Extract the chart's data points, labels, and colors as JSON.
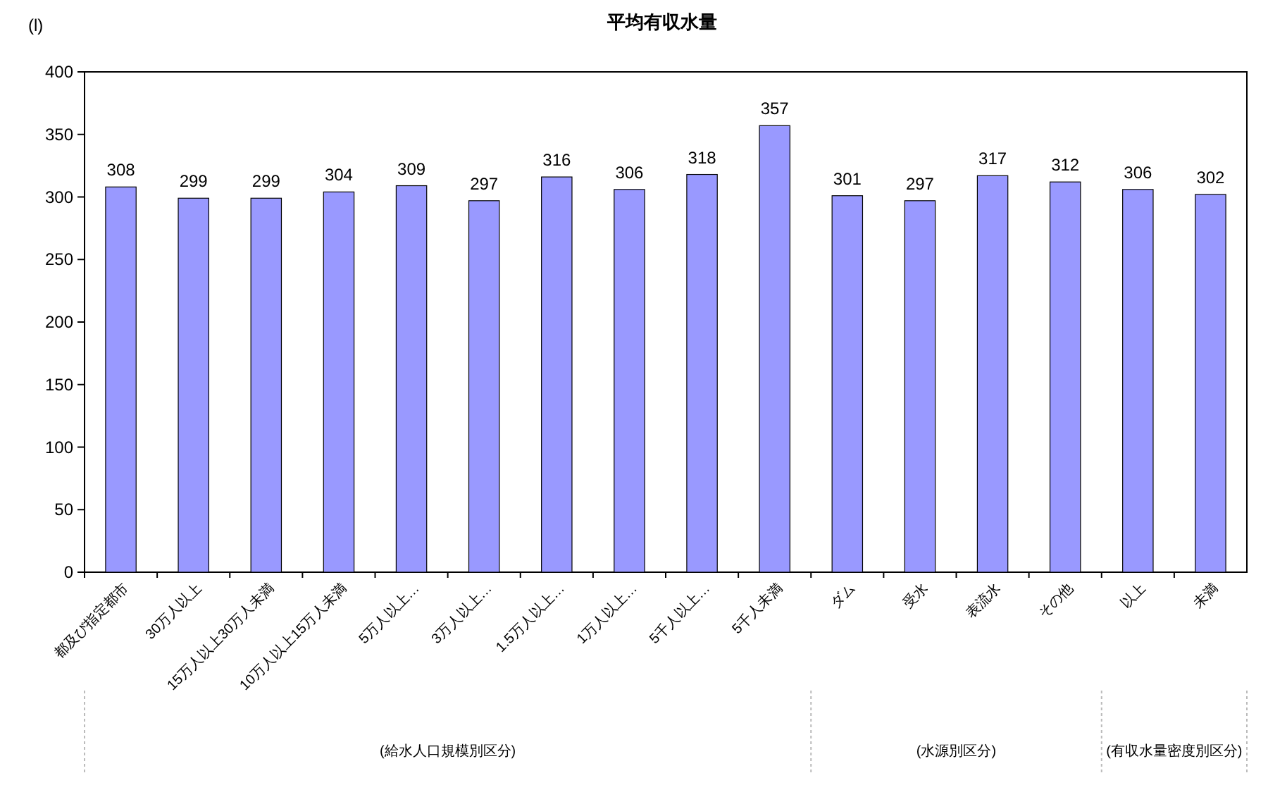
{
  "chart_data": {
    "type": "bar",
    "title": "平均有収水量",
    "ylabel": "(l)",
    "categories": [
      "都及び指定都市",
      "30万人以上",
      "15万人以上30万人未満",
      "10万人以上15万人未満",
      "5万人以上…",
      "3万人以上…",
      "1.5万人以上…",
      "1万人以上…",
      "5千人以上…",
      "5千人未満",
      "ダム",
      "受水",
      "表流水",
      "その他",
      "以上",
      "未満"
    ],
    "values": [
      308,
      299,
      299,
      304,
      309,
      297,
      316,
      306,
      318,
      357,
      301,
      297,
      317,
      312,
      306,
      302
    ],
    "color": "#9999ff",
    "ylim": [
      0,
      400
    ],
    "yticks": [
      0,
      50,
      100,
      150,
      200,
      250,
      300,
      350,
      400
    ],
    "grid": false,
    "data_labels": true,
    "annotations": [
      "(給水人口規模別区分)",
      "(水源別区分)",
      "(有収水量密度別区分)"
    ]
  }
}
